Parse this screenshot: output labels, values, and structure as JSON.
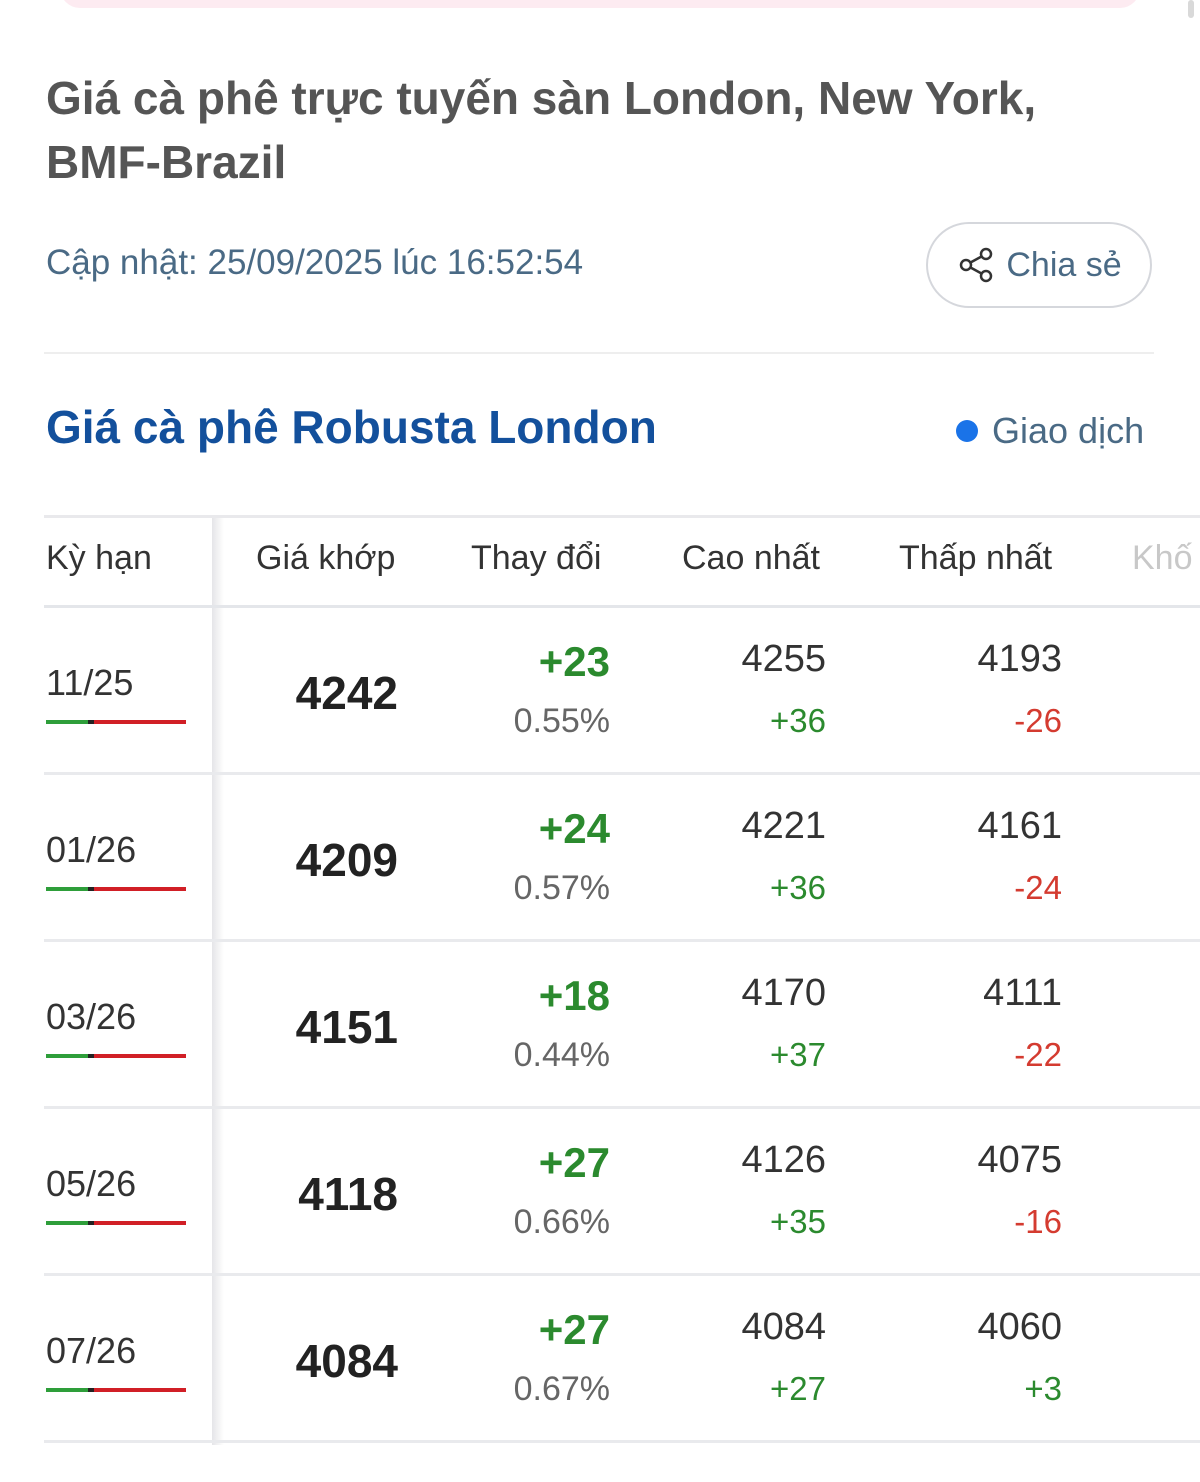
{
  "page": {
    "title": "Giá cà phê trực tuyến sàn London, New York, BMF-Brazil",
    "updated": "Cập nhật: 25/09/2025 lúc 16:52:54",
    "share_label": "Chia sẻ",
    "share_icon": "share-icon"
  },
  "section": {
    "title": "Giá cà phê Robusta London",
    "status": "Giao dịch",
    "status_color": "#1a73e8",
    "title_color": "#13509c"
  },
  "table": {
    "headers": [
      "Kỳ hạn",
      "Giá khớp",
      "Thay đổi",
      "Cao nhất",
      "Thấp nhất",
      "Khố"
    ],
    "rows": [
      {
        "term": "11/25",
        "price": "4242",
        "change": "+23",
        "pct": "0.55%",
        "high": "4255",
        "high_diff": "+36",
        "low": "4193",
        "low_diff": "-26"
      },
      {
        "term": "01/26",
        "price": "4209",
        "change": "+24",
        "pct": "0.57%",
        "high": "4221",
        "high_diff": "+36",
        "low": "4161",
        "low_diff": "-24"
      },
      {
        "term": "03/26",
        "price": "4151",
        "change": "+18",
        "pct": "0.44%",
        "high": "4170",
        "high_diff": "+37",
        "low": "4111",
        "low_diff": "-22"
      },
      {
        "term": "05/26",
        "price": "4118",
        "change": "+27",
        "pct": "0.66%",
        "high": "4126",
        "high_diff": "+35",
        "low": "4075",
        "low_diff": "-16"
      },
      {
        "term": "07/26",
        "price": "4084",
        "change": "+27",
        "pct": "0.67%",
        "high": "4084",
        "high_diff": "+27",
        "low": "4060",
        "low_diff": "+3"
      }
    ]
  },
  "colors": {
    "positive": "#2b8a2e",
    "negative": "#d43b30"
  }
}
